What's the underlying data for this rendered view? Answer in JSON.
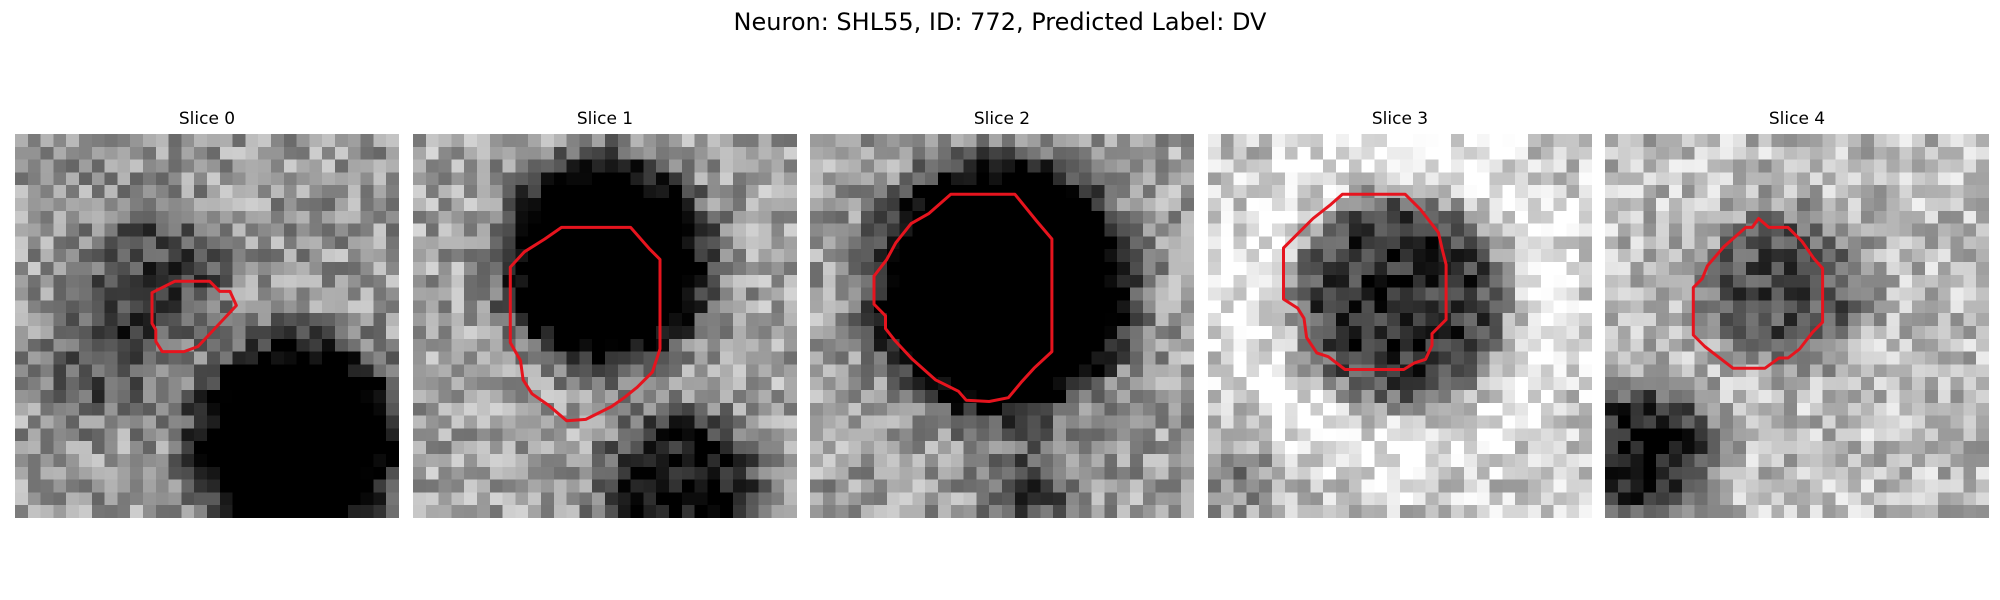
{
  "figure": {
    "title": "Neuron: SHL55, ID: 772, Predicted Label: DV"
  },
  "panels": [
    {
      "title": "Slice 0"
    },
    {
      "title": "Slice 1"
    },
    {
      "title": "Slice 2"
    },
    {
      "title": "Slice 3"
    },
    {
      "title": "Slice 4"
    }
  ],
  "colors": {
    "contour": "#e6141e",
    "colormap": "grayscale"
  }
}
